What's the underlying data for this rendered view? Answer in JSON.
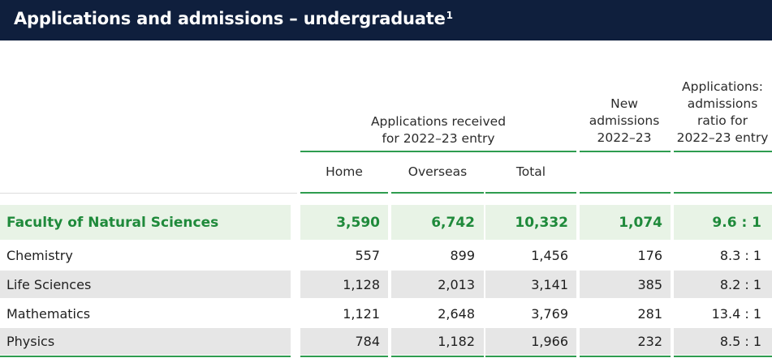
{
  "title": {
    "text": "Applications and admissions – undergraduate",
    "footnote": "1"
  },
  "headers": {
    "applications_group": [
      "Applications received",
      "for 2022–23 entry"
    ],
    "new_admissions": [
      "New",
      "admissions",
      "2022–23"
    ],
    "ratio": [
      "Applications:",
      "admissions",
      "ratio for",
      "2022–23 entry"
    ],
    "home": "Home",
    "overseas": "Overseas",
    "total": "Total"
  },
  "rows": [
    {
      "label": "Faculty of Natural Sciences",
      "home": "3,590",
      "overseas": "6,742",
      "total": "10,332",
      "new": "1,074",
      "ratio": "9.6 : 1"
    },
    {
      "label": "Chemistry",
      "home": "557",
      "overseas": "899",
      "total": "1,456",
      "new": "176",
      "ratio": "8.3 : 1"
    },
    {
      "label": "Life Sciences",
      "home": "1,128",
      "overseas": "2,013",
      "total": "3,141",
      "new": "385",
      "ratio": "8.2 : 1"
    },
    {
      "label": "Mathematics",
      "home": "1,121",
      "overseas": "2,648",
      "total": "3,769",
      "new": "281",
      "ratio": "13.4 : 1"
    },
    {
      "label": "Physics",
      "home": "784",
      "overseas": "1,182",
      "total": "1,966",
      "new": "232",
      "ratio": "8.5 : 1"
    }
  ],
  "colors": {
    "title_bg": "#0f1f3d",
    "accent_green": "#2e9c4f",
    "faculty_text": "#1f8a3b",
    "faculty_bg": "#e8f3e6",
    "alt_row_bg": "#e6e6e6"
  }
}
